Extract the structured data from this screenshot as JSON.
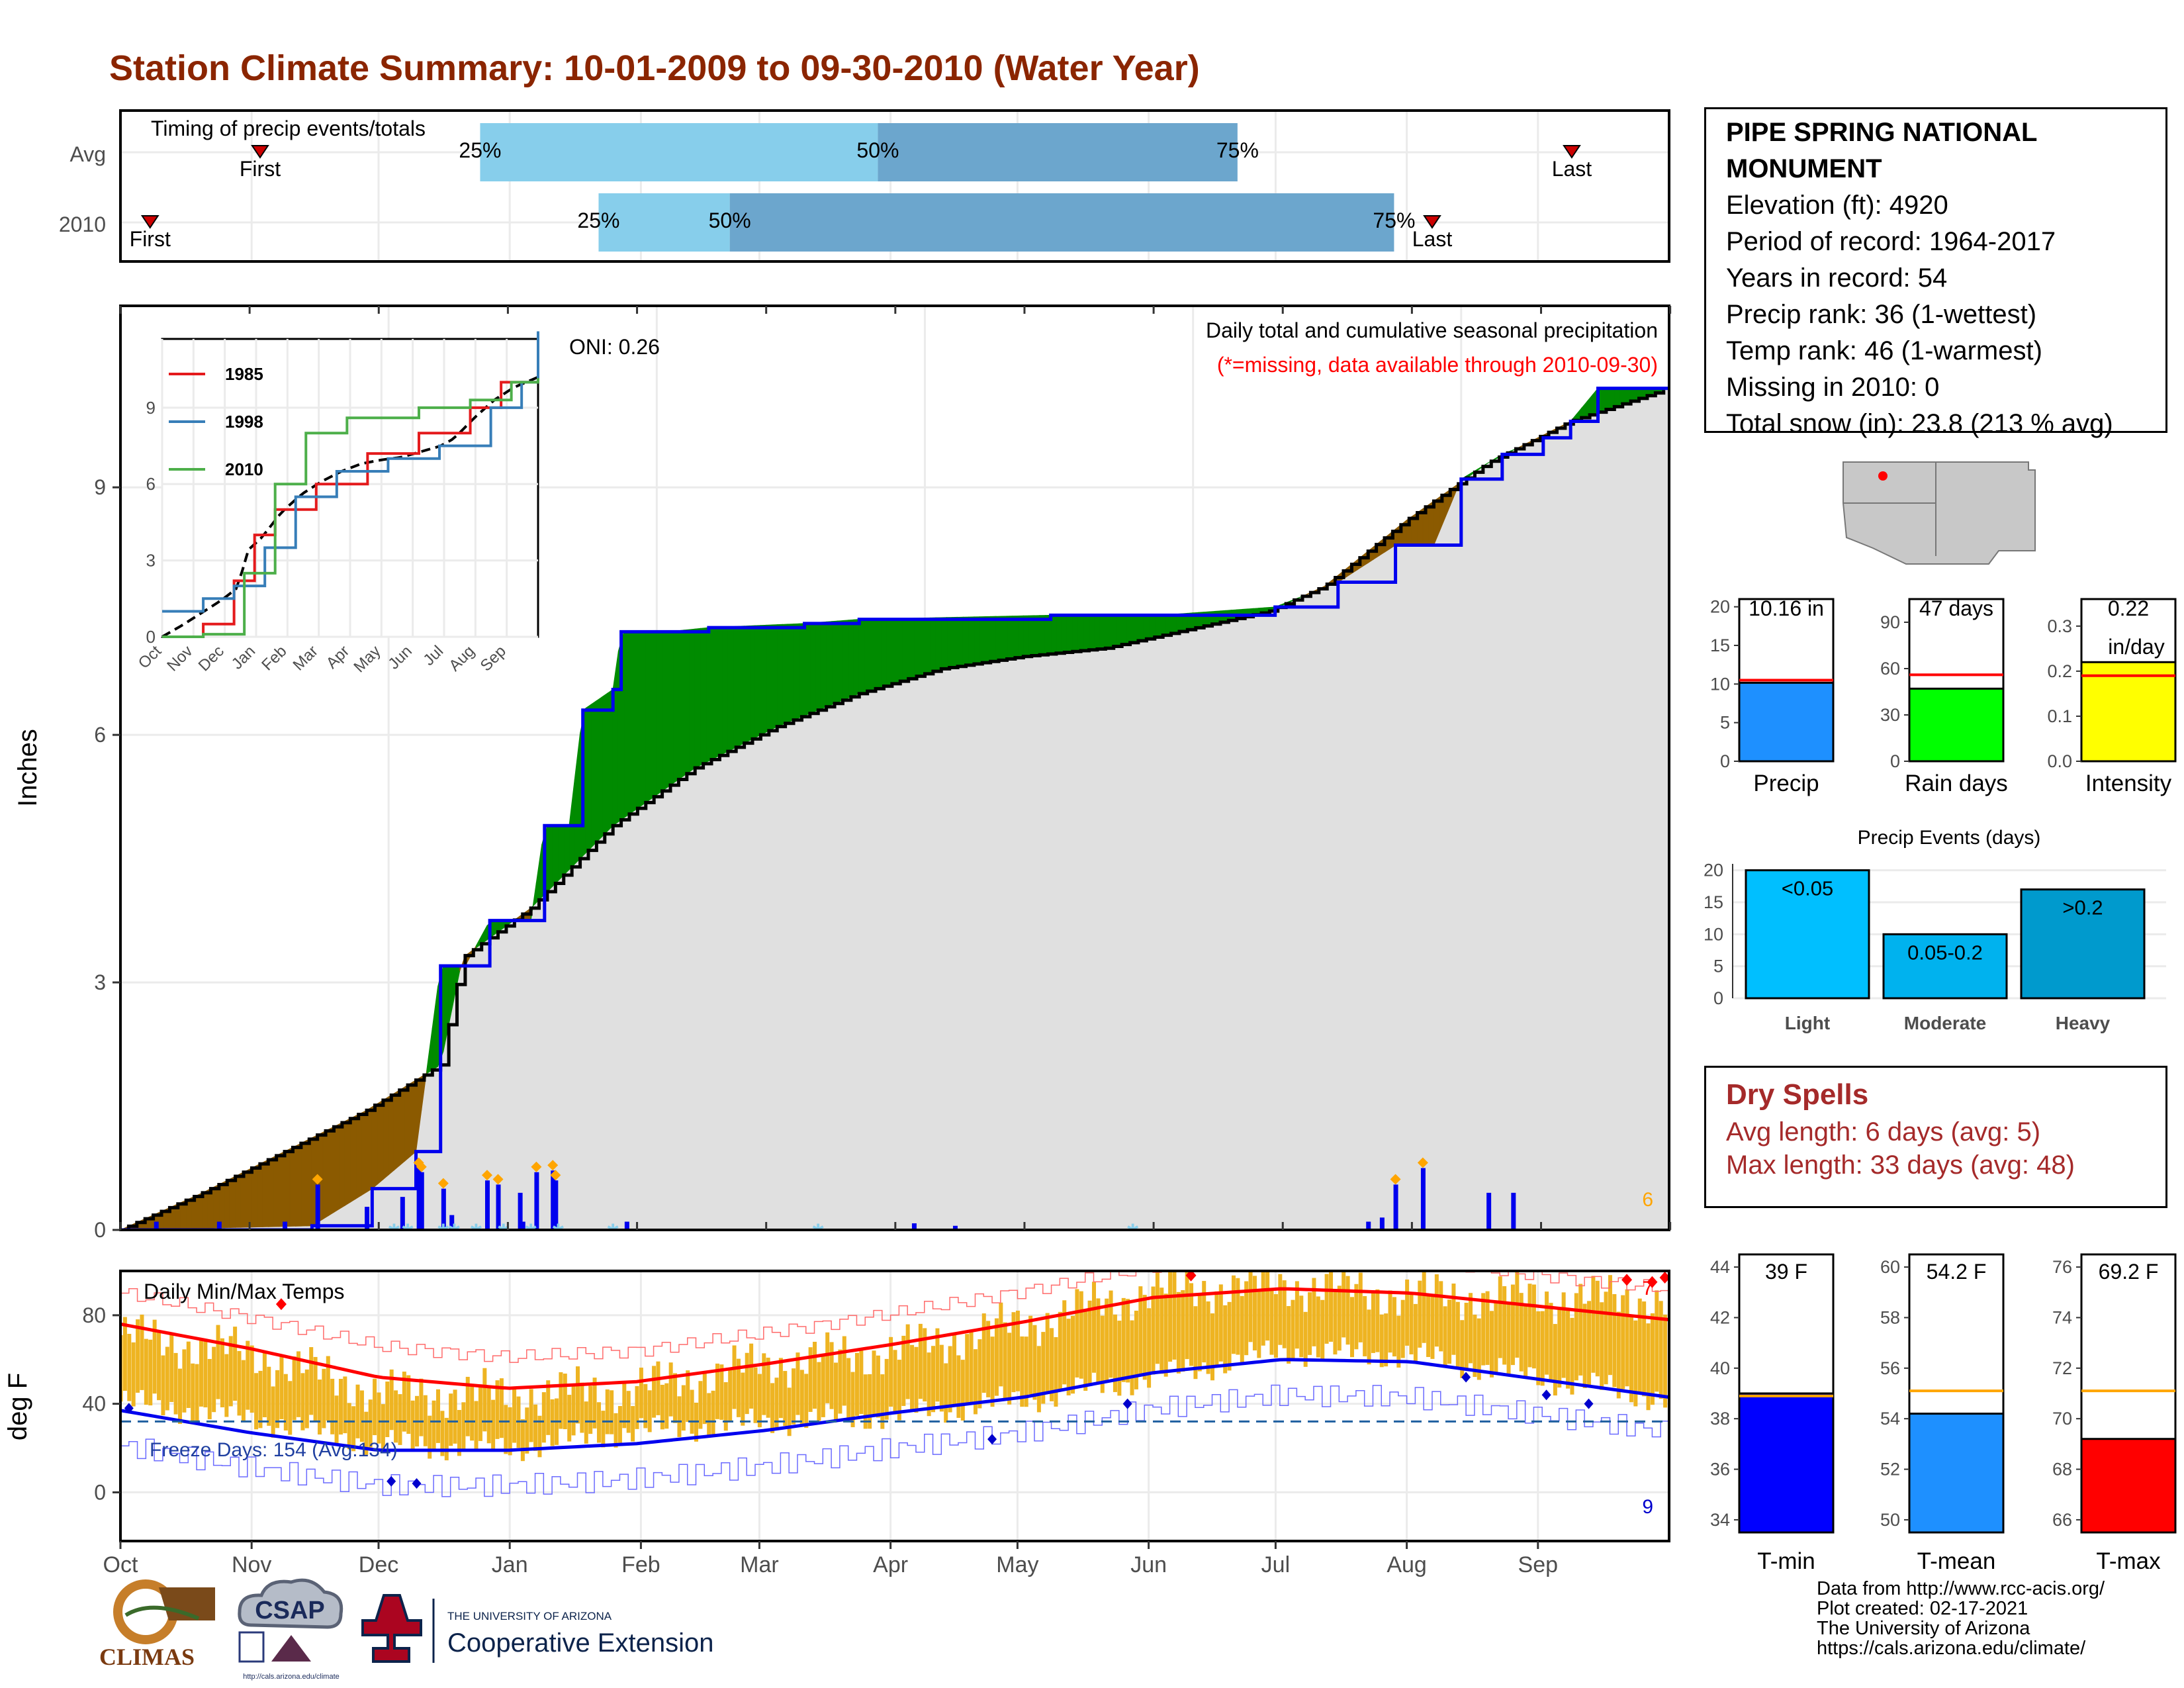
{
  "title": "Station Climate Summary: 10-01-2009 to 09-30-2010 (Water Year)",
  "timing": {
    "label": "Timing of precip events/totals",
    "rows": [
      {
        "name": "Avg",
        "first_day": 33,
        "p25": 85,
        "p50": 179,
        "p75": 264,
        "last_day": 343,
        "first_label": "First",
        "last_label": "Last"
      },
      {
        "name": "2010",
        "first_day": 7,
        "p25": 113,
        "p50": 144,
        "p75": 301,
        "last_day": 310,
        "first_label": "First",
        "last_label": "Last"
      }
    ],
    "pct_labels": [
      "25%",
      "50%",
      "75%"
    ]
  },
  "precip_panel": {
    "ylabel": "Inches",
    "yticks": [
      "0",
      "3",
      "6",
      "9"
    ],
    "oni": "ONI: 0.26",
    "subtitle": "Daily total and cumulative seasonal precipitation",
    "missing_note": "(*=missing, data available through 2010-09-30)",
    "extreme_count": "6"
  },
  "inset": {
    "yticks": [
      "0",
      "3",
      "6",
      "9"
    ],
    "months": [
      "Oct",
      "Nov",
      "Dec",
      "Jan",
      "Feb",
      "Mar",
      "Apr",
      "May",
      "Jun",
      "Jul",
      "Aug",
      "Sep"
    ],
    "legend": [
      {
        "name": "1985",
        "color": "#e41a1c"
      },
      {
        "name": "1998",
        "color": "#377eb8"
      },
      {
        "name": "2010",
        "color": "#4daf4a"
      }
    ]
  },
  "temp_panel": {
    "ylabel": "deg F",
    "yticks": [
      "0",
      "40",
      "80"
    ],
    "label": "Daily Min/Max Temps",
    "freeze_label": "Freeze Days: 154 (Avg:134)",
    "high_count": "7",
    "low_count": "9"
  },
  "x_months": [
    "Oct",
    "Nov",
    "Dec",
    "Jan",
    "Feb",
    "Mar",
    "Apr",
    "May",
    "Jun",
    "Jul",
    "Aug",
    "Sep"
  ],
  "station": {
    "name": "PIPE SPRING NATIONAL MONUMENT",
    "lines": [
      "Elevation (ft): 4920",
      "Period of record: 1964-2017",
      "Years in record: 54",
      "Precip rank: 36 (1-wettest)",
      "Temp rank: 46 (1-warmest)",
      "Missing in 2010: 0",
      "Total snow (in): 23.8 (213 % avg)"
    ]
  },
  "summary_bars": [
    {
      "name": "Precip",
      "value_label": "10.16 in",
      "value": 10.16,
      "avg": 10.5,
      "ymax": 21,
      "ticks": [
        "0",
        "5",
        "10",
        "15",
        "20"
      ],
      "tickvals": [
        0,
        5,
        10,
        15,
        20
      ],
      "color": "#1e90ff"
    },
    {
      "name": "Rain days",
      "value_label": "47 days",
      "value": 47,
      "avg": 56,
      "ymax": 105,
      "ticks": [
        "0",
        "30",
        "60",
        "90"
      ],
      "tickvals": [
        0,
        30,
        60,
        90
      ],
      "color": "#00ff00"
    },
    {
      "name": "Intensity",
      "value_label": "0.22",
      "value_label2": "in/day",
      "value": 0.22,
      "avg": 0.19,
      "ymax": 0.36,
      "ticks": [
        "0.0",
        "0.1",
        "0.2",
        "0.3"
      ],
      "tickvals": [
        0,
        0.1,
        0.2,
        0.3
      ],
      "color": "#ffff00"
    }
  ],
  "events": {
    "title": "Precip Events (days)",
    "ticks": [
      "0",
      "5",
      "10",
      "15",
      "20"
    ],
    "tickvals": [
      0,
      5,
      10,
      15,
      20
    ],
    "ymax": 21,
    "bars": [
      {
        "name": "Light",
        "label": "<0.05",
        "value": 20,
        "color": "#00bfff"
      },
      {
        "name": "Moderate",
        "label": "0.05-0.2",
        "value": 10,
        "color": "#00b2ee"
      },
      {
        "name": "Heavy",
        "label": ">0.2",
        "value": 17,
        "color": "#009acd"
      }
    ]
  },
  "dry_spells": {
    "title": "Dry Spells",
    "avg_length": "Avg length: 6 days (avg: 5)",
    "max_length": "Max length: 33 days (avg: 48)"
  },
  "temp_bars": [
    {
      "name": "T-min",
      "value_label": "39 F",
      "value": 39,
      "avg": 38.9,
      "ymin": 33.5,
      "ymax": 44.5,
      "ticks": [
        "34",
        "36",
        "38",
        "40",
        "42",
        "44"
      ],
      "tickvals": [
        34,
        36,
        38,
        40,
        42,
        44
      ],
      "color": "#0000ff"
    },
    {
      "name": "T-mean",
      "value_label": "54.2 F",
      "value": 54.2,
      "avg": 55.1,
      "ymin": 49.5,
      "ymax": 60.5,
      "ticks": [
        "50",
        "52",
        "54",
        "56",
        "58",
        "60"
      ],
      "tickvals": [
        50,
        52,
        54,
        56,
        58,
        60
      ],
      "color": "#1e90ff"
    },
    {
      "name": "T-max",
      "value_label": "69.2 F",
      "value": 69.2,
      "avg": 71.1,
      "ymin": 65.5,
      "ymax": 76.5,
      "ticks": [
        "66",
        "68",
        "70",
        "72",
        "74",
        "76"
      ],
      "tickvals": [
        66,
        68,
        70,
        72,
        74,
        76
      ],
      "color": "#ff0000"
    }
  ],
  "credits": [
    "Data from http://www.rcc-acis.org/",
    "Plot created: 02-17-2021",
    "The University of Arizona",
    "https://cals.arizona.edu/climate/"
  ],
  "logos": {
    "climas": "CLIMAS",
    "csap": "CSAP",
    "csap_url": "http://cals.arizona.edu/climate",
    "ua_top": "THE UNIVERSITY OF ARIZONA",
    "ua_bottom": "Cooperative Extension",
    "ua_letter": "A"
  },
  "chart_data": [
    {
      "type": "area",
      "title": "Daily total and cumulative seasonal precipitation",
      "ylabel": "Inches",
      "ylim": [
        0,
        11
      ],
      "x_unit": "day of water year (Oct 1 = 0)",
      "observed_cumulative": [
        [
          0,
          0
        ],
        [
          70,
          0.05
        ],
        [
          92,
          0.5
        ],
        [
          108,
          0.95
        ],
        [
          117,
          3.2
        ],
        [
          126,
          3.2
        ],
        [
          135,
          3.75
        ],
        [
          150,
          3.75
        ],
        [
          155,
          4.9
        ],
        [
          164,
          4.9
        ],
        [
          169,
          6.3
        ],
        [
          180,
          6.55
        ],
        [
          183,
          7.25
        ],
        [
          200,
          7.25
        ],
        [
          215,
          7.3
        ],
        [
          250,
          7.35
        ],
        [
          270,
          7.4
        ],
        [
          340,
          7.45
        ],
        [
          380,
          7.45
        ],
        [
          422,
          7.55
        ],
        [
          445,
          7.85
        ],
        [
          466,
          8.3
        ],
        [
          480,
          8.3
        ],
        [
          490,
          9.1
        ],
        [
          505,
          9.4
        ],
        [
          520,
          9.6
        ],
        [
          530,
          9.8
        ],
        [
          540,
          10.2
        ],
        [
          560,
          10.2
        ],
        [
          566,
          10.2
        ]
      ],
      "average_cumulative": [
        [
          0,
          0
        ],
        [
          30,
          0.45
        ],
        [
          60,
          0.95
        ],
        [
          90,
          1.45
        ],
        [
          117,
          2.0
        ],
        [
          125,
          3.3
        ],
        [
          150,
          3.9
        ],
        [
          180,
          4.9
        ],
        [
          210,
          5.6
        ],
        [
          240,
          6.1
        ],
        [
          270,
          6.5
        ],
        [
          300,
          6.8
        ],
        [
          330,
          6.95
        ],
        [
          360,
          7.05
        ],
        [
          400,
          7.35
        ],
        [
          420,
          7.5
        ],
        [
          440,
          7.8
        ],
        [
          470,
          8.6
        ],
        [
          500,
          9.3
        ],
        [
          530,
          9.8
        ],
        [
          566,
          10.2
        ]
      ],
      "daily_events": [
        [
          13,
          0.1
        ],
        [
          36,
          0.1
        ],
        [
          60,
          0.1
        ],
        [
          72,
          0.55
        ],
        [
          90,
          0.28
        ],
        [
          103,
          0.4
        ],
        [
          109,
          0.75
        ],
        [
          110,
          0.7
        ],
        [
          118,
          0.5
        ],
        [
          121,
          0.18
        ],
        [
          134,
          0.6
        ],
        [
          138,
          0.55
        ],
        [
          146,
          0.45
        ],
        [
          147,
          0.1
        ],
        [
          152,
          0.7
        ],
        [
          158,
          0.72
        ],
        [
          159,
          0.6
        ],
        [
          185,
          0.1
        ],
        [
          290,
          0.08
        ],
        [
          305,
          0.05
        ],
        [
          456,
          0.1
        ],
        [
          461,
          0.15
        ],
        [
          466,
          0.55
        ],
        [
          476,
          0.75
        ],
        [
          500,
          0.45
        ],
        [
          509,
          0.45
        ]
      ],
      "inset": {
        "type": "line",
        "series": [
          {
            "name": "1985",
            "points": [
              [
                0,
                0
              ],
              [
                40,
                0.5
              ],
              [
                70,
                2.2
              ],
              [
                90,
                4
              ],
              [
                110,
                5
              ],
              [
                150,
                6
              ],
              [
                200,
                7.2
              ],
              [
                250,
                8
              ],
              [
                300,
                9
              ],
              [
                330,
                10
              ],
              [
                366,
                10.7
              ]
            ]
          },
          {
            "name": "1998",
            "points": [
              [
                0,
                1
              ],
              [
                40,
                1.5
              ],
              [
                70,
                2
              ],
              [
                100,
                3.5
              ],
              [
                130,
                5.5
              ],
              [
                170,
                6.5
              ],
              [
                220,
                7
              ],
              [
                270,
                7.5
              ],
              [
                320,
                9
              ],
              [
                350,
                10
              ],
              [
                366,
                12
              ]
            ]
          },
          {
            "name": "2010",
            "points": [
              [
                0,
                0
              ],
              [
                40,
                0.1
              ],
              [
                80,
                2.5
              ],
              [
                110,
                6
              ],
              [
                140,
                8
              ],
              [
                180,
                8.6
              ],
              [
                250,
                9
              ],
              [
                300,
                9.3
              ],
              [
                340,
                10
              ],
              [
                366,
                10.16
              ]
            ]
          }
        ]
      }
    },
    {
      "type": "bar",
      "title": "Daily Min/Max Temps",
      "ylabel": "deg F",
      "ylim": [
        -20,
        100
      ],
      "categories": [
        "Oct",
        "Nov",
        "Dec",
        "Jan",
        "Feb",
        "Mar",
        "Apr",
        "May",
        "Jun",
        "Jul",
        "Aug",
        "Sep"
      ],
      "series": [
        {
          "name": "Tmax normal",
          "values": [
            76,
            65,
            52,
            47,
            50,
            58,
            67,
            77,
            88,
            92,
            90,
            84
          ]
        },
        {
          "name": "Tmin normal",
          "values": [
            37,
            27,
            19,
            19,
            22,
            28,
            36,
            43,
            54,
            60,
            59,
            51
          ]
        },
        {
          "name": "Tmax daily",
          "values": [
            71,
            63,
            45,
            44,
            47,
            58,
            64,
            76,
            91,
            94,
            89,
            88
          ]
        },
        {
          "name": "Tmin daily",
          "values": [
            37,
            30,
            18,
            16,
            24,
            28,
            31,
            38,
            48,
            60,
            58,
            48
          ]
        }
      ],
      "freeze_threshold": 32
    },
    {
      "type": "bar",
      "categories": [
        "Precip",
        "Rain days",
        "Intensity"
      ],
      "values": [
        10.16,
        47,
        0.22
      ]
    },
    {
      "type": "bar",
      "title": "Precip Events (days)",
      "categories": [
        "Light",
        "Moderate",
        "Heavy"
      ],
      "values": [
        20,
        10,
        17
      ]
    },
    {
      "type": "bar",
      "categories": [
        "T-min",
        "T-mean",
        "T-max"
      ],
      "values": [
        39,
        54.2,
        69.2
      ]
    }
  ]
}
